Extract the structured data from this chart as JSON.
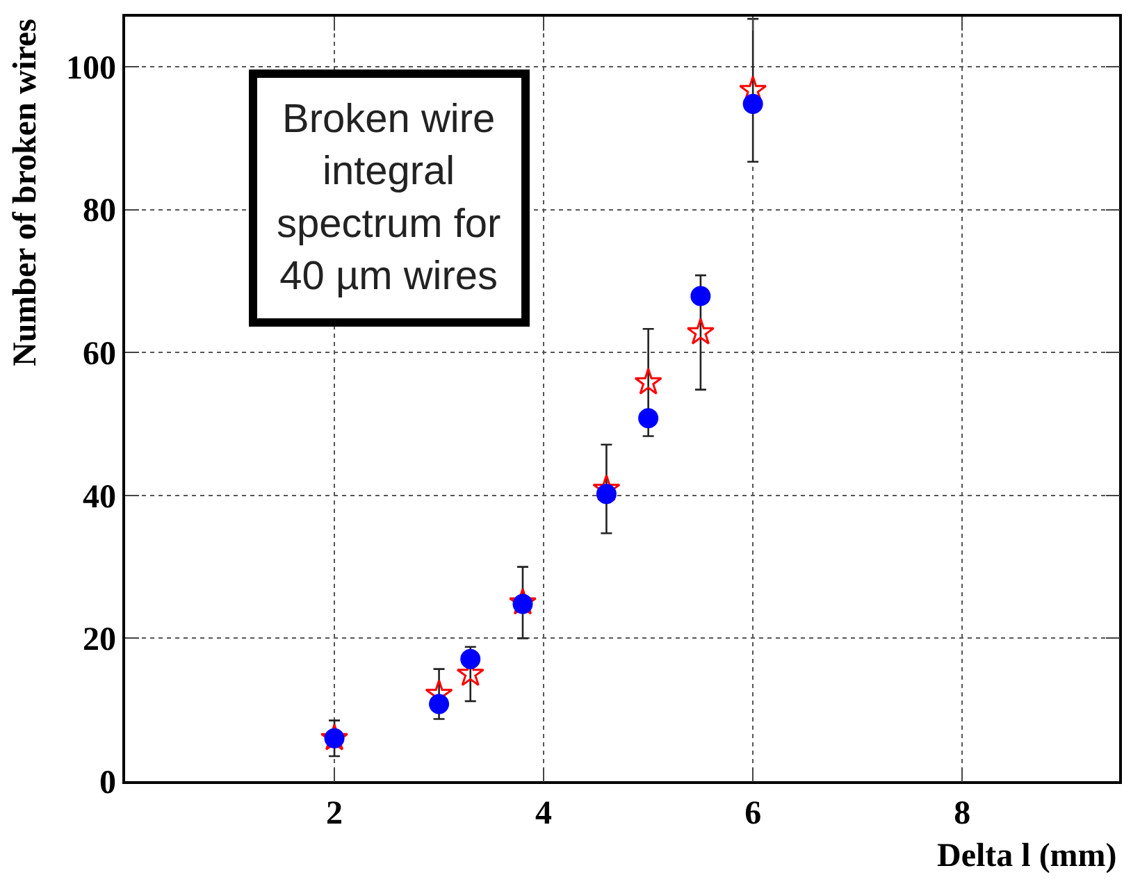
{
  "chart_data": {
    "type": "scatter",
    "xlabel": "Delta l (mm)",
    "ylabel": "Number of broken wires",
    "x": [
      2,
      3,
      3.3,
      3.8,
      4.6,
      5,
      5.5,
      6
    ],
    "series": [
      {
        "color": "#ff0000",
        "marker": "star",
        "values": [
          6,
          12.2,
          15,
          25,
          40.9,
          55.8,
          62.8,
          96.7
        ],
        "errors": [
          2.5,
          3.5,
          3.8,
          5,
          6.2,
          7.5,
          8,
          10
        ]
      },
      {
        "color": "#0000ff",
        "marker": "circle",
        "values": [
          6,
          10.8,
          17.1,
          24.8,
          40.2,
          50.8,
          67.9,
          94.8
        ]
      }
    ],
    "xlim": [
      0,
      9.5
    ],
    "xticks": [
      2,
      4,
      6,
      8
    ],
    "ylim": [
      0,
      107
    ],
    "yticks": [
      0,
      20,
      40,
      60,
      80,
      100
    ],
    "grid": true,
    "annotations": [
      "Broken wire\nintegral\nspectrum for\n40 µm wires"
    ]
  }
}
